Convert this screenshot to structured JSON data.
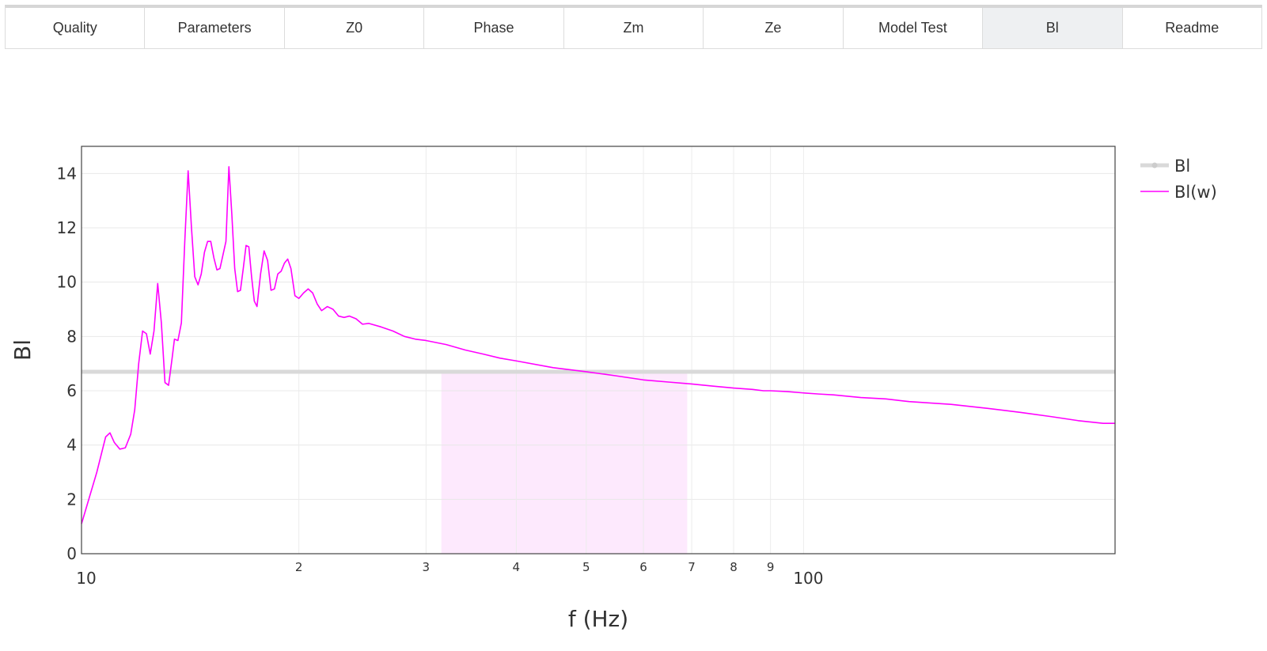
{
  "tabs": [
    {
      "label": "Quality",
      "active": false
    },
    {
      "label": "Parameters",
      "active": false
    },
    {
      "label": "Z0",
      "active": false
    },
    {
      "label": "Phase",
      "active": false
    },
    {
      "label": "Zm",
      "active": false
    },
    {
      "label": "Ze",
      "active": false
    },
    {
      "label": "Model Test",
      "active": false
    },
    {
      "label": "Bl",
      "active": true
    },
    {
      "label": "Readme",
      "active": false
    }
  ],
  "chart_data": {
    "type": "line",
    "xscale": "log",
    "xlabel": "f (Hz)",
    "ylabel": "Bl",
    "xlim": [
      10,
      270
    ],
    "ylim": [
      0,
      15
    ],
    "grid": true,
    "legend_position": "top-right",
    "x_ticks": [
      {
        "value": 10,
        "label": "10",
        "major": true
      },
      {
        "value": 20,
        "label": "2",
        "major": false
      },
      {
        "value": 30,
        "label": "3",
        "major": false
      },
      {
        "value": 40,
        "label": "4",
        "major": false
      },
      {
        "value": 50,
        "label": "5",
        "major": false
      },
      {
        "value": 60,
        "label": "6",
        "major": false
      },
      {
        "value": 70,
        "label": "7",
        "major": false
      },
      {
        "value": 80,
        "label": "8",
        "major": false
      },
      {
        "value": 90,
        "label": "9",
        "major": false
      },
      {
        "value": 100,
        "label": "100",
        "major": true
      }
    ],
    "y_ticks": [
      0,
      2,
      4,
      6,
      8,
      10,
      12,
      14
    ],
    "shaded_region": {
      "x_start": 31.5,
      "x_end": 69,
      "y_top": 6.7,
      "color": "#fde9fd"
    },
    "series": [
      {
        "name": "Bl",
        "kind": "constant",
        "value": 6.7,
        "color": "#d9d9d9"
      },
      {
        "name": "Bl(w)",
        "kind": "curve",
        "color": "#ff00ff",
        "x": [
          10.0,
          10.5,
          10.8,
          10.95,
          11.1,
          11.3,
          11.5,
          11.7,
          11.85,
          12.0,
          12.15,
          12.3,
          12.45,
          12.6,
          12.75,
          12.9,
          13.05,
          13.2,
          13.35,
          13.45,
          13.6,
          13.75,
          13.9,
          14.05,
          14.2,
          14.35,
          14.5,
          14.65,
          14.8,
          14.95,
          15.1,
          15.25,
          15.4,
          15.55,
          15.7,
          15.85,
          16.0,
          16.15,
          16.3,
          16.45,
          16.6,
          16.75,
          16.9,
          17.05,
          17.2,
          17.35,
          17.5,
          17.7,
          17.9,
          18.1,
          18.3,
          18.5,
          18.7,
          18.9,
          19.1,
          19.3,
          19.5,
          19.75,
          20.0,
          20.3,
          20.6,
          20.9,
          21.2,
          21.5,
          21.9,
          22.3,
          22.7,
          23.1,
          23.5,
          24.0,
          24.5,
          25.0,
          26.0,
          27.0,
          28.0,
          29.0,
          30.0,
          32.0,
          34.0,
          36.0,
          38.0,
          40.0,
          45.0,
          50.0,
          55.0,
          60.0,
          65.0,
          70.0,
          75.0,
          80.0,
          85.0,
          88.0,
          90.0,
          95.0,
          100.0,
          105.0,
          110.0,
          120.0,
          130.0,
          140.0,
          160.0,
          180.0,
          200.0,
          220.0,
          240.0,
          260.0,
          270.0
        ],
        "y": [
          1.1,
          3.0,
          4.3,
          4.45,
          4.1,
          3.85,
          3.9,
          4.4,
          5.3,
          7.0,
          8.2,
          8.1,
          7.35,
          8.2,
          9.95,
          8.5,
          6.3,
          6.2,
          7.2,
          7.9,
          7.85,
          8.5,
          11.5,
          14.1,
          12.0,
          10.2,
          9.9,
          10.3,
          11.1,
          11.5,
          11.5,
          10.9,
          10.45,
          10.5,
          11.0,
          11.5,
          14.25,
          12.5,
          10.5,
          9.65,
          9.7,
          10.5,
          11.35,
          11.3,
          10.2,
          9.3,
          9.1,
          10.3,
          11.15,
          10.8,
          9.7,
          9.75,
          10.3,
          10.4,
          10.7,
          10.85,
          10.5,
          9.5,
          9.4,
          9.6,
          9.75,
          9.6,
          9.2,
          8.95,
          9.1,
          9.0,
          8.75,
          8.7,
          8.75,
          8.65,
          8.45,
          8.48,
          8.35,
          8.2,
          8.0,
          7.9,
          7.85,
          7.7,
          7.5,
          7.35,
          7.2,
          7.1,
          6.85,
          6.7,
          6.55,
          6.4,
          6.32,
          6.25,
          6.17,
          6.1,
          6.05,
          6.0,
          6.0,
          5.97,
          5.92,
          5.88,
          5.85,
          5.75,
          5.7,
          5.6,
          5.5,
          5.35,
          5.2,
          5.05,
          4.9,
          4.8,
          4.8
        ]
      }
    ]
  }
}
